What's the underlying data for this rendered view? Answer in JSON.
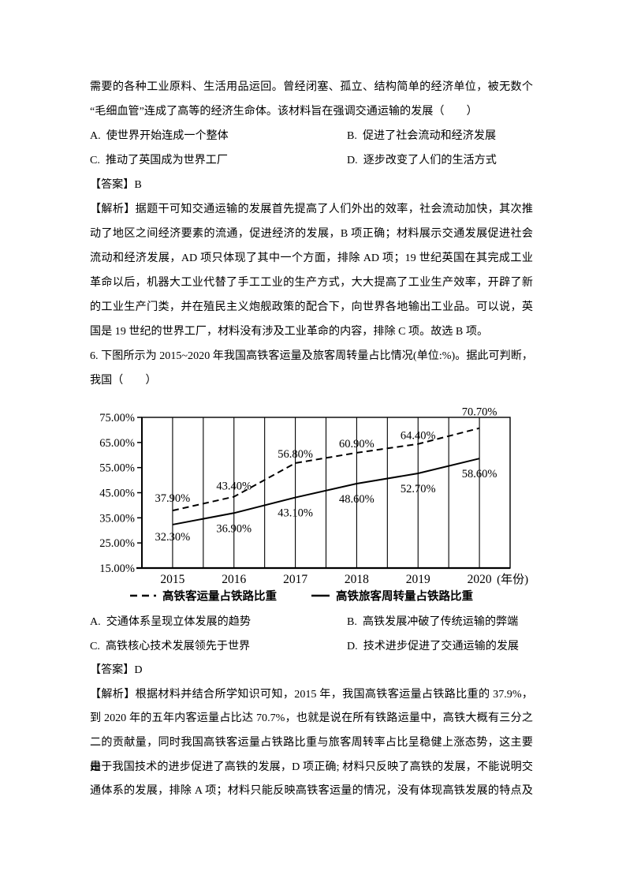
{
  "q5": {
    "body_lines": [
      "需要的各种工业原料、生活用品运回。曾经闭塞、孤立、结构简单的经济单位，被无数个",
      "“毛细血管”连成了高等的经济生命体。该材料旨在强调交通运输的发展（　　）"
    ],
    "options": [
      {
        "label": "A.",
        "text": "使世界开始连成一个整体"
      },
      {
        "label": "B.",
        "text": "促进了社会流动和经济发展"
      },
      {
        "label": "C.",
        "text": "推动了英国成为世界工厂"
      },
      {
        "label": "D.",
        "text": "逐步改变了人们的生活方式"
      }
    ],
    "answer_prefix": "【答案】",
    "answer": "B",
    "analysis_lines": [
      "【解析】据题干可知交通运输的发展首先提高了人们外出的效率，社会流动加快，其次推",
      "动了地区之间经济要素的流通，促进经济的发展，B 项正确；材料展示交通发展促进社会",
      "流动和经济发展，AD 项只体现了其中一个方面，排除 AD 项；19 世纪英国在其完成工业",
      "革命以后，机器大工业代替了手工工业的生产方式，大大提高了工业生产效率，开辟了新",
      "的工业生产门类，并在殖民主义炮舰政策的配合下，向世界各地输出工业品。可以说，英",
      "国是 19 世纪的世界工厂，材料没有涉及工业革命的内容，排除 C 项。故选 B 项。"
    ]
  },
  "q6": {
    "stem_lines": [
      "6. 下图所示为 2015~2020 年我国高铁客运量及旅客周转量占比情况(单位:%)。据此可判断，",
      "我国（　　）"
    ],
    "options": [
      {
        "label": "A.",
        "text": "交通体系呈现立体发展的趋势"
      },
      {
        "label": "B.",
        "text": "高铁发展冲破了传统运输的弊端"
      },
      {
        "label": "C.",
        "text": "高铁核心技术发展领先于世界"
      },
      {
        "label": "D.",
        "text": "技术进步促进了交通运输的发展"
      }
    ],
    "answer_prefix": "【答案】",
    "answer": "D",
    "analysis_lines": [
      "【解析】根据材料并结合所学知识可知，2015 年，我国高铁客运量占铁路比重的 37.9%，",
      "到 2020 年的五年内客运量占比达 70.7%，也就是说在所有铁路运量中，高铁大概有三分之",
      "二的贡献量，同时我国高铁客运量占铁路比重与旅客周转率占比呈稳健上涨态势，这主要是",
      "由于我国技术的进步促进了高铁的发展，D 项正确; 材料只反映了高铁的发展，不能说明交",
      "通体系的发展，排除 A 项；材料只能反映高铁客运量的情况，没有体现高铁发展的特点及"
    ]
  },
  "chart_data": {
    "type": "line",
    "x": [
      2015,
      2016,
      2017,
      2018,
      2019,
      2020
    ],
    "x_axis_suffix": "(年份)",
    "ylim": [
      15,
      75
    ],
    "y_tick_labels": [
      "75.00%",
      "65.00%",
      "55.00%",
      "45.00%",
      "35.00%",
      "25.00%",
      "15.00%"
    ],
    "grid": "vertical-half-interval",
    "legend_position": "bottom",
    "line_color": "#000000",
    "series": [
      {
        "name": "高铁客运量占铁路比重",
        "style": "dashed",
        "values": [
          37.9,
          43.4,
          56.8,
          60.9,
          64.4,
          70.7
        ],
        "labels": [
          "37.90%",
          "43.40%",
          "56.80%",
          "60.90%",
          "64.40%",
          "70.70%"
        ]
      },
      {
        "name": "高铁旅客周转量占铁路比重",
        "style": "solid",
        "values": [
          32.3,
          36.9,
          43.1,
          48.6,
          52.7,
          58.6
        ],
        "labels": [
          "32.30%",
          "36.90%",
          "43.10%",
          "48.60%",
          "52.70%",
          "58.60%"
        ]
      }
    ]
  }
}
